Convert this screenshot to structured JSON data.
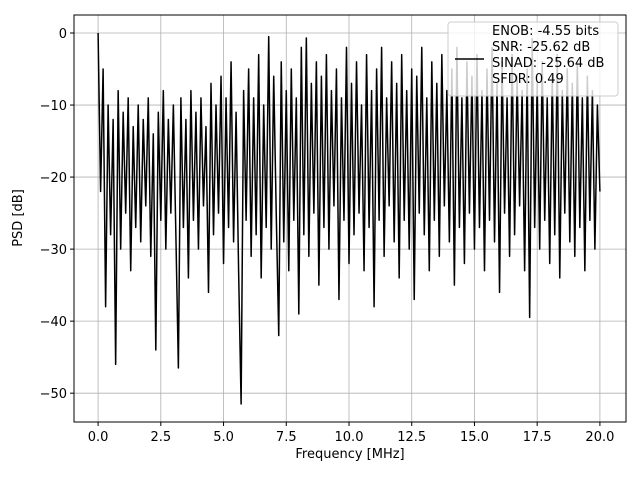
{
  "chart_data": {
    "type": "line",
    "x_label": "Frequency [MHz]",
    "y_label": "PSD [dB]",
    "xlim": [
      -0.96,
      21.04
    ],
    "ylim": [
      -54.0,
      2.5
    ],
    "xticks": [
      {
        "value": 0,
        "label": "0.0"
      },
      {
        "value": 2.5,
        "label": "2.5"
      },
      {
        "value": 5,
        "label": "5.0"
      },
      {
        "value": 7.5,
        "label": "7.5"
      },
      {
        "value": 10,
        "label": "10.0"
      },
      {
        "value": 12.5,
        "label": "12.5"
      },
      {
        "value": 15,
        "label": "15.0"
      },
      {
        "value": 17.5,
        "label": "17.5"
      },
      {
        "value": 20,
        "label": "20.0"
      }
    ],
    "yticks": [
      {
        "value": -50,
        "label": "−50"
      },
      {
        "value": -40,
        "label": "−40"
      },
      {
        "value": -30,
        "label": "−30"
      },
      {
        "value": -20,
        "label": "−20"
      },
      {
        "value": -10,
        "label": "−10"
      },
      0
    ],
    "grid": true,
    "legend": "upper right",
    "x": [
      0.0,
      0.1,
      0.2,
      0.3,
      0.4,
      0.5,
      0.6,
      0.7,
      0.8,
      0.9,
      1.0,
      1.1,
      1.2,
      1.3,
      1.4,
      1.5,
      1.6,
      1.7,
      1.8,
      1.9,
      2.0,
      2.1,
      2.2,
      2.3,
      2.4,
      2.5,
      2.6,
      2.7,
      2.8,
      2.9,
      3.0,
      3.1,
      3.2,
      3.3,
      3.4,
      3.5,
      3.6,
      3.7,
      3.8,
      3.9,
      4.0,
      4.1,
      4.2,
      4.3,
      4.4,
      4.5,
      4.6,
      4.7,
      4.8,
      4.9,
      5.0,
      5.1,
      5.2,
      5.3,
      5.4,
      5.5,
      5.6,
      5.7,
      5.8,
      5.9,
      6.0,
      6.1,
      6.2,
      6.3,
      6.4,
      6.5,
      6.6,
      6.7,
      6.8,
      6.9,
      7.0,
      7.1,
      7.2,
      7.3,
      7.4,
      7.5,
      7.6,
      7.7,
      7.8,
      7.9,
      8.0,
      8.1,
      8.2,
      8.3,
      8.4,
      8.5,
      8.6,
      8.7,
      8.8,
      8.9,
      9.0,
      9.1,
      9.2,
      9.3,
      9.4,
      9.5,
      9.6,
      9.7,
      9.8,
      9.9,
      10.0,
      10.1,
      10.2,
      10.3,
      10.4,
      10.5,
      10.6,
      10.7,
      10.8,
      10.9,
      11.0,
      11.1,
      11.2,
      11.3,
      11.4,
      11.5,
      11.6,
      11.7,
      11.8,
      11.9,
      12.0,
      12.1,
      12.2,
      12.3,
      12.4,
      12.5,
      12.6,
      12.7,
      12.8,
      12.9,
      13.0,
      13.1,
      13.2,
      13.3,
      13.4,
      13.5,
      13.6,
      13.7,
      13.8,
      13.9,
      14.0,
      14.1,
      14.2,
      14.3,
      14.4,
      14.5,
      14.6,
      14.7,
      14.8,
      14.9,
      15.0,
      15.1,
      15.2,
      15.3,
      15.4,
      15.5,
      15.6,
      15.7,
      15.8,
      15.9,
      16.0,
      16.1,
      16.2,
      16.3,
      16.4,
      16.5,
      16.6,
      16.7,
      16.8,
      16.9,
      17.0,
      17.1,
      17.2,
      17.3,
      17.4,
      17.5,
      17.6,
      17.7,
      17.8,
      17.9,
      18.0,
      18.1,
      18.2,
      18.3,
      18.4,
      18.5,
      18.6,
      18.7,
      18.8,
      18.9,
      19.0,
      19.1,
      19.2,
      19.3,
      19.4,
      19.5,
      19.6,
      19.7,
      19.8,
      19.9,
      20.0
    ],
    "series": [
      {
        "name": "ENOB: -4.55 bits\nSNR: -25.62 dB\nSINAD: -25.64 dB\nSFDR: 0.49",
        "color": "#000000",
        "values": [
          0,
          -22,
          -5,
          -38,
          -10,
          -28,
          -12,
          -46,
          -8,
          -30,
          -11,
          -25,
          -9,
          -33,
          -13,
          -27,
          -10,
          -29,
          -12,
          -24,
          -9,
          -31,
          -14,
          -44,
          -11,
          -26,
          -8,
          -30,
          -12,
          -25,
          -10,
          -28,
          -46.5,
          -9,
          -27,
          -12,
          -34,
          -8,
          -26,
          -11,
          -30,
          -9,
          -24,
          -13,
          -36,
          -7,
          -28,
          -10,
          -25,
          -6,
          -32,
          -9,
          -27,
          -4,
          -29,
          -11,
          -33,
          -51.5,
          -8,
          -26,
          -5,
          -31,
          -9,
          -28,
          -3,
          -34,
          -10,
          -27,
          -0.5,
          -30,
          -6,
          -25,
          -42,
          -4,
          -29,
          -8,
          -33,
          -5,
          -26,
          -9,
          -39,
          -2,
          -28,
          -0.7,
          -31,
          -7,
          -25,
          -4,
          -35,
          -6,
          -27,
          -3,
          -30,
          -8,
          -24,
          -5,
          -37,
          -9,
          -26,
          -2,
          -32,
          -7,
          -28,
          -4,
          -25,
          -10,
          -33,
          -3,
          -27,
          -8,
          -38,
          -5,
          -26,
          -2,
          -31,
          -9,
          -24,
          -4,
          -29,
          -7,
          -34,
          -3,
          -26,
          -8,
          -30,
          -5,
          -37,
          -6,
          -25,
          -2,
          -28,
          -9,
          -33,
          -4,
          -26,
          -7,
          -31,
          -3,
          -24,
          -8,
          -29,
          -5,
          -35,
          -2,
          -27,
          -9,
          -32,
          -4,
          -25,
          -6,
          -30,
          -3,
          -27,
          -8,
          -33,
          -5,
          -26,
          -2,
          -29,
          -7,
          -36,
          -4,
          -25,
          -9,
          -31,
          -3,
          -28,
          -6,
          -24,
          -8,
          -33,
          -5,
          -39.5,
          -0.8,
          -27,
          -7,
          -30,
          -4,
          -26,
          -9,
          -32,
          -6,
          -28,
          -3,
          -34,
          -8,
          -25,
          -5,
          -29,
          -7,
          -31,
          -4,
          -27,
          -9,
          -33,
          -6,
          -26,
          -8,
          -30,
          -10,
          -22
        ]
      }
    ]
  }
}
